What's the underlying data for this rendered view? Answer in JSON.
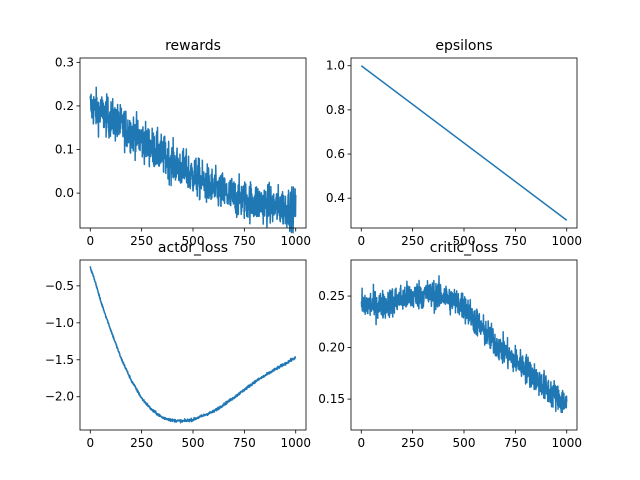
{
  "chart_data": [
    {
      "type": "line",
      "title": "rewards",
      "xlim": [
        -50,
        1050
      ],
      "ylim": [
        -0.08,
        0.31
      ],
      "x_ticks": [
        0,
        250,
        500,
        750,
        1000
      ],
      "y_ticks": [
        0.3,
        0.2,
        0.1,
        0.0
      ],
      "x_tick_labels": [
        "0",
        "250",
        "500",
        "750",
        "1000"
      ],
      "y_tick_labels": [
        "0.3",
        "0.2",
        "0.1",
        "0.0"
      ],
      "series_color": "#1f77b4",
      "trend": {
        "x": [
          0,
          50,
          100,
          200,
          300,
          400,
          500,
          600,
          700,
          800,
          900,
          1000
        ],
        "y": [
          0.2,
          0.185,
          0.17,
          0.14,
          0.105,
          0.07,
          0.04,
          0.01,
          -0.01,
          -0.02,
          -0.03,
          -0.035
        ]
      },
      "noise": 0.045,
      "points": 1000
    },
    {
      "type": "line",
      "title": "epsilons",
      "xlim": [
        -50,
        1050
      ],
      "ylim": [
        0.265,
        1.035
      ],
      "x_ticks": [
        0,
        250,
        500,
        750,
        1000
      ],
      "y_ticks": [
        1.0,
        0.8,
        0.6,
        0.4
      ],
      "x_tick_labels": [
        "0",
        "250",
        "500",
        "750",
        "1000"
      ],
      "y_tick_labels": [
        "1.0",
        "0.8",
        "0.6",
        "0.4"
      ],
      "series_color": "#1f77b4",
      "trend": {
        "x": [
          0,
          1000
        ],
        "y": [
          1.0,
          0.3
        ]
      },
      "noise": 0,
      "points": 2
    },
    {
      "type": "line",
      "title": "actor_loss",
      "xlim": [
        -50,
        1050
      ],
      "ylim": [
        -2.45,
        -0.15
      ],
      "x_ticks": [
        0,
        250,
        500,
        750,
        1000
      ],
      "y_ticks": [
        -0.5,
        -1.0,
        -1.5,
        -2.0
      ],
      "x_tick_labels": [
        "0",
        "250",
        "500",
        "750",
        "1000"
      ],
      "y_tick_labels": [
        "−0.5",
        "−1.0",
        "−1.5",
        "−2.0"
      ],
      "series_color": "#1f77b4",
      "trend": {
        "x": [
          0,
          25,
          50,
          100,
          150,
          200,
          250,
          300,
          350,
          400,
          450,
          500,
          600,
          700,
          800,
          900,
          1000
        ],
        "y": [
          -0.25,
          -0.45,
          -0.7,
          -1.1,
          -1.48,
          -1.78,
          -2.02,
          -2.18,
          -2.28,
          -2.32,
          -2.33,
          -2.31,
          -2.2,
          -2.01,
          -1.8,
          -1.63,
          -1.47
        ]
      },
      "noise": 0.018,
      "points": 1000
    },
    {
      "type": "line",
      "title": "critic_loss",
      "xlim": [
        -50,
        1050
      ],
      "ylim": [
        0.12,
        0.285
      ],
      "x_ticks": [
        0,
        250,
        500,
        750,
        1000
      ],
      "y_ticks": [
        0.25,
        0.2,
        0.15
      ],
      "x_tick_labels": [
        "0",
        "250",
        "500",
        "750",
        "1000"
      ],
      "y_tick_labels": [
        "0.25",
        "0.20",
        "0.15"
      ],
      "series_color": "#1f77b4",
      "trend": {
        "x": [
          0,
          100,
          200,
          300,
          400,
          500,
          600,
          700,
          800,
          900,
          1000
        ],
        "y": [
          0.242,
          0.241,
          0.248,
          0.252,
          0.25,
          0.24,
          0.215,
          0.195,
          0.18,
          0.16,
          0.145
        ]
      },
      "noise": 0.014,
      "points": 1000
    }
  ]
}
